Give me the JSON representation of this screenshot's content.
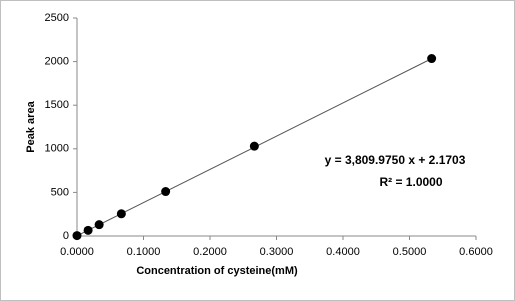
{
  "chart_data": {
    "type": "scatter",
    "x_label": "Concentration of cysteine(mM)",
    "y_label": "Peak area",
    "x": [
      0,
      0.0167,
      0.0333,
      0.0667,
      0.1333,
      0.2667,
      0.5333
    ],
    "values": [
      5,
      65,
      130,
      255,
      510,
      1030,
      2035
    ],
    "color": "#000000",
    "xlim": [
      0,
      0.6
    ],
    "xticks": [
      {
        "value": 0,
        "label": "0.0000"
      },
      {
        "value": 0.1,
        "label": "0.1000"
      },
      {
        "value": 0.2,
        "label": "0.2000"
      },
      {
        "value": 0.3,
        "label": "0.3000"
      },
      {
        "value": 0.4,
        "label": "0.4000"
      },
      {
        "value": 0.5,
        "label": "0.5000"
      },
      {
        "value": 0.6,
        "label": "0.6000"
      }
    ],
    "ylim": [
      0,
      2500
    ],
    "yticks": [
      0,
      500,
      1000,
      1500,
      2000,
      2500
    ],
    "trendline": {
      "slope": 3809.975,
      "intercept": 2.1703
    },
    "annotations": [
      "y = 3,809.9750 x + 2.1703",
      "R² = 1.0000"
    ],
    "grid": false
  }
}
